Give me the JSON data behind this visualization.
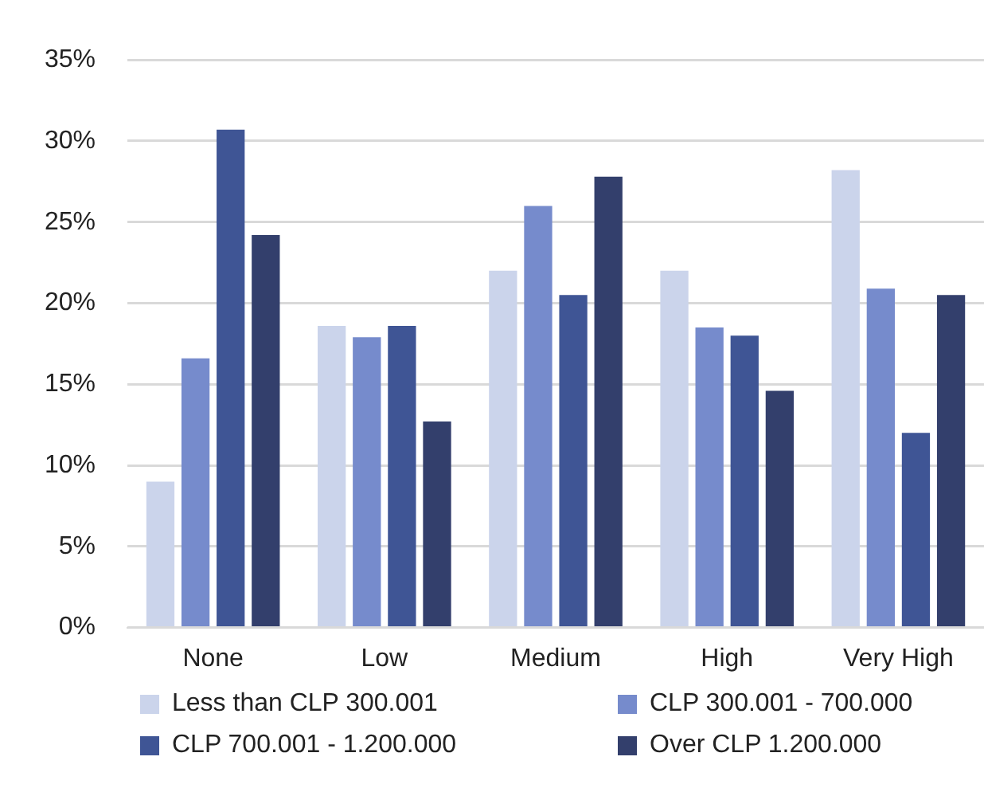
{
  "chart_data": {
    "type": "bar",
    "categories": [
      "None",
      "Low",
      "Medium",
      "High",
      "Very High"
    ],
    "series": [
      {
        "name": "Less than CLP 300.001",
        "color": "#cbd4eb",
        "values": [
          9.0,
          18.6,
          22.0,
          22.0,
          28.2
        ]
      },
      {
        "name": "CLP 300.001 - 700.000",
        "color": "#768bcc",
        "values": [
          16.6,
          17.9,
          26.0,
          18.5,
          20.9
        ]
      },
      {
        "name": "CLP 700.001 - 1.200.000",
        "color": "#3f5595",
        "values": [
          30.7,
          18.6,
          20.5,
          18.0,
          12.0
        ]
      },
      {
        "name": "Over CLP 1.200.000",
        "color": "#333f6c",
        "values": [
          24.2,
          12.7,
          27.8,
          14.6,
          20.5
        ]
      }
    ],
    "ylim": [
      0,
      35
    ],
    "yticks": [
      {
        "value": 0,
        "label": "0%"
      },
      {
        "value": 5,
        "label": "5%"
      },
      {
        "value": 10,
        "label": "10%"
      },
      {
        "value": 15,
        "label": "15%"
      },
      {
        "value": 20,
        "label": "20%"
      },
      {
        "value": 25,
        "label": "25%"
      },
      {
        "value": 30,
        "label": "30%"
      },
      {
        "value": 35,
        "label": "35%"
      }
    ],
    "grid": "y",
    "legend": "bottom"
  }
}
